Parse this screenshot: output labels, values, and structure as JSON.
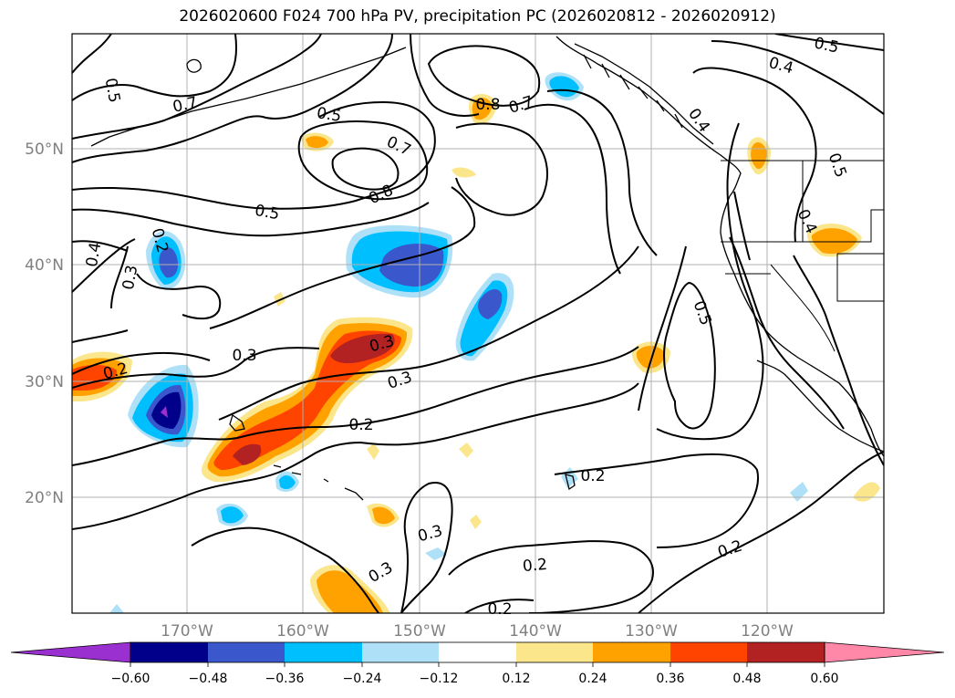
{
  "title": "2026020600 F024 700 hPa PV, precipitation PC (2026020812 - 2026020912)",
  "lat_labels": [
    "50°N",
    "40°N",
    "30°N",
    "20°N"
  ],
  "lon_labels": [
    "170°W",
    "160°W",
    "150°W",
    "140°W",
    "130°W",
    "120°W"
  ],
  "contour_labels": [
    "0.5",
    "0.7",
    "0.5",
    "0.8",
    "0.7",
    "0.5",
    "0.4",
    "0.7",
    "0.8",
    "0.5",
    "0.4",
    "0.3",
    "0.2",
    "0.2",
    "0.3",
    "0.3",
    "0.2",
    "0.2",
    "0.3",
    "0.3",
    "0.3",
    "0.2",
    "0.2",
    "0.5",
    "0.2",
    "0.4",
    "0.5",
    "0.4"
  ],
  "colorbar": {
    "ticks": [
      "−0.60",
      "−0.48",
      "−0.36",
      "−0.24",
      "−0.12",
      "0.12",
      "0.24",
      "0.36",
      "0.48",
      "0.60"
    ],
    "colors": [
      "#9b30d0",
      "#00008b",
      "#3a58cc",
      "#00bfff",
      "#aee1f8",
      "#ffffff",
      "#fbe68c",
      "#ffa200",
      "#ff4400",
      "#b22222",
      "#ff87a8"
    ]
  },
  "fill_colors": {
    "neg_light": "#aee1f8",
    "neg_med": "#00bfff",
    "neg_strong": "#3a58cc",
    "neg_dark": "#00008b",
    "neg_extreme": "#9b30d0",
    "pos_light": "#fbe68c",
    "pos_med": "#ffa200",
    "pos_strong": "#ff4400",
    "pos_dark": "#b22222"
  }
}
